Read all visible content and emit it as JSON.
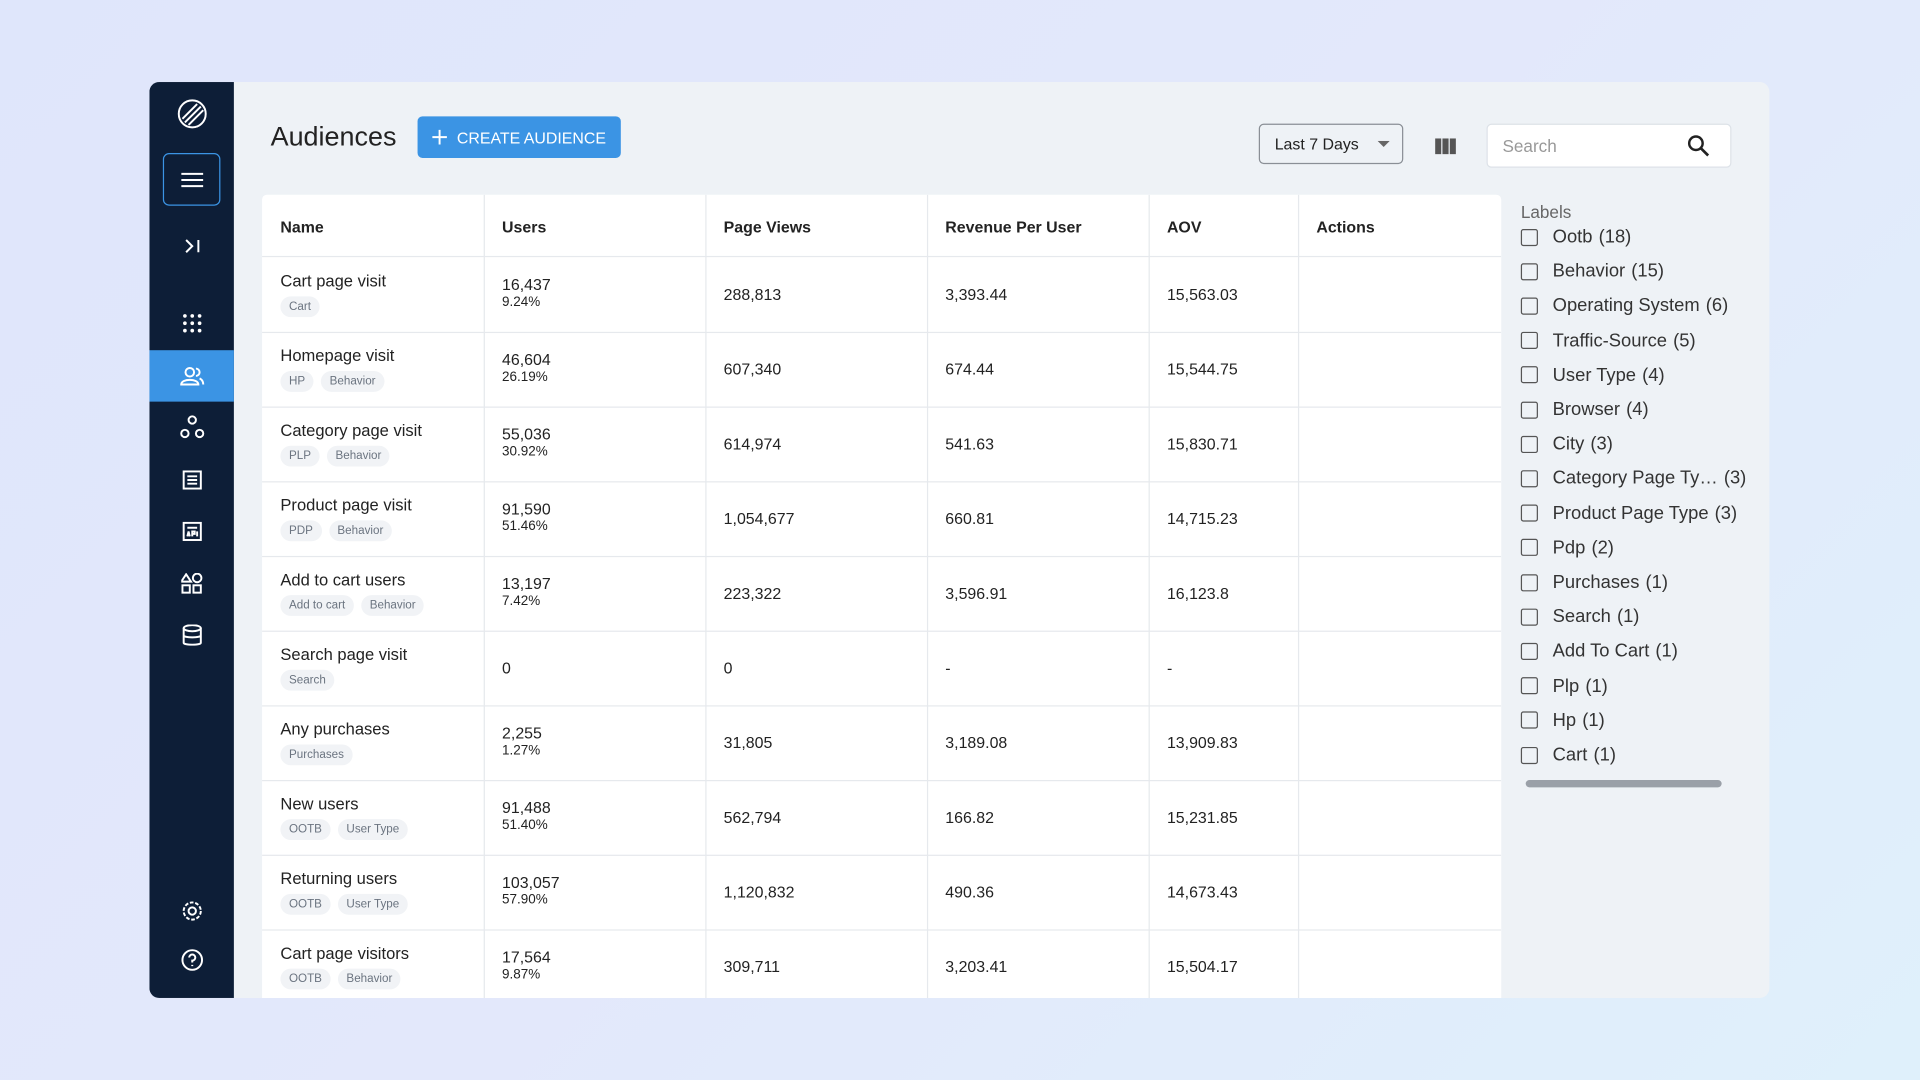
{
  "header": {
    "title": "Audiences",
    "create_button": "CREATE AUDIENCE",
    "date_range": "Last 7 Days",
    "search_placeholder": "Search"
  },
  "table": {
    "columns": [
      "Name",
      "Users",
      "Page Views",
      "Revenue Per User",
      "AOV",
      "Actions"
    ],
    "rows": [
      {
        "name": "Cart page visit",
        "tags": [
          "Cart"
        ],
        "users": "16,437",
        "users_pct": "9.24%",
        "page_views": "288,813",
        "revenue_per_user": "3,393.44",
        "aov": "15,563.03"
      },
      {
        "name": "Homepage visit",
        "tags": [
          "HP",
          "Behavior"
        ],
        "users": "46,604",
        "users_pct": "26.19%",
        "page_views": "607,340",
        "revenue_per_user": "674.44",
        "aov": "15,544.75"
      },
      {
        "name": "Category page visit",
        "tags": [
          "PLP",
          "Behavior"
        ],
        "users": "55,036",
        "users_pct": "30.92%",
        "page_views": "614,974",
        "revenue_per_user": "541.63",
        "aov": "15,830.71"
      },
      {
        "name": "Product page visit",
        "tags": [
          "PDP",
          "Behavior"
        ],
        "users": "91,590",
        "users_pct": "51.46%",
        "page_views": "1,054,677",
        "revenue_per_user": "660.81",
        "aov": "14,715.23"
      },
      {
        "name": "Add to cart users",
        "tags": [
          "Add to cart",
          "Behavior"
        ],
        "users": "13,197",
        "users_pct": "7.42%",
        "page_views": "223,322",
        "revenue_per_user": "3,596.91",
        "aov": "16,123.8"
      },
      {
        "name": "Search page visit",
        "tags": [
          "Search"
        ],
        "users": "0",
        "users_pct": null,
        "page_views": "0",
        "revenue_per_user": "-",
        "aov": "-"
      },
      {
        "name": "Any purchases",
        "tags": [
          "Purchases"
        ],
        "users": "2,255",
        "users_pct": "1.27%",
        "page_views": "31,805",
        "revenue_per_user": "3,189.08",
        "aov": "13,909.83"
      },
      {
        "name": "New users",
        "tags": [
          "OOTB",
          "User Type"
        ],
        "users": "91,488",
        "users_pct": "51.40%",
        "page_views": "562,794",
        "revenue_per_user": "166.82",
        "aov": "15,231.85"
      },
      {
        "name": "Returning users",
        "tags": [
          "OOTB",
          "User Type"
        ],
        "users": "103,057",
        "users_pct": "57.90%",
        "page_views": "1,120,832",
        "revenue_per_user": "490.36",
        "aov": "14,673.43"
      },
      {
        "name": "Cart page visitors",
        "tags": [
          "OOTB",
          "Behavior"
        ],
        "users": "17,564",
        "users_pct": "9.87%",
        "page_views": "309,711",
        "revenue_per_user": "3,203.41",
        "aov": "15,504.17"
      }
    ]
  },
  "labels": {
    "title": "Labels",
    "items": [
      {
        "name": "Ootb",
        "count": "(18)"
      },
      {
        "name": "Behavior",
        "count": "(15)"
      },
      {
        "name": "Operating System",
        "count": "(6)"
      },
      {
        "name": "Traffic-Source",
        "count": "(5)"
      },
      {
        "name": "User Type",
        "count": "(4)"
      },
      {
        "name": "Browser",
        "count": "(4)"
      },
      {
        "name": "City",
        "count": "(3)"
      },
      {
        "name": "Category Page Ty…",
        "count": "(3)"
      },
      {
        "name": "Product Page Type",
        "count": "(3)"
      },
      {
        "name": "Pdp",
        "count": "(2)"
      },
      {
        "name": "Purchases",
        "count": "(1)"
      },
      {
        "name": "Search",
        "count": "(1)"
      },
      {
        "name": "Add To Cart",
        "count": "(1)"
      },
      {
        "name": "Plp",
        "count": "(1)"
      },
      {
        "name": "Hp",
        "count": "(1)"
      },
      {
        "name": "Cart",
        "count": "(1)"
      }
    ]
  }
}
